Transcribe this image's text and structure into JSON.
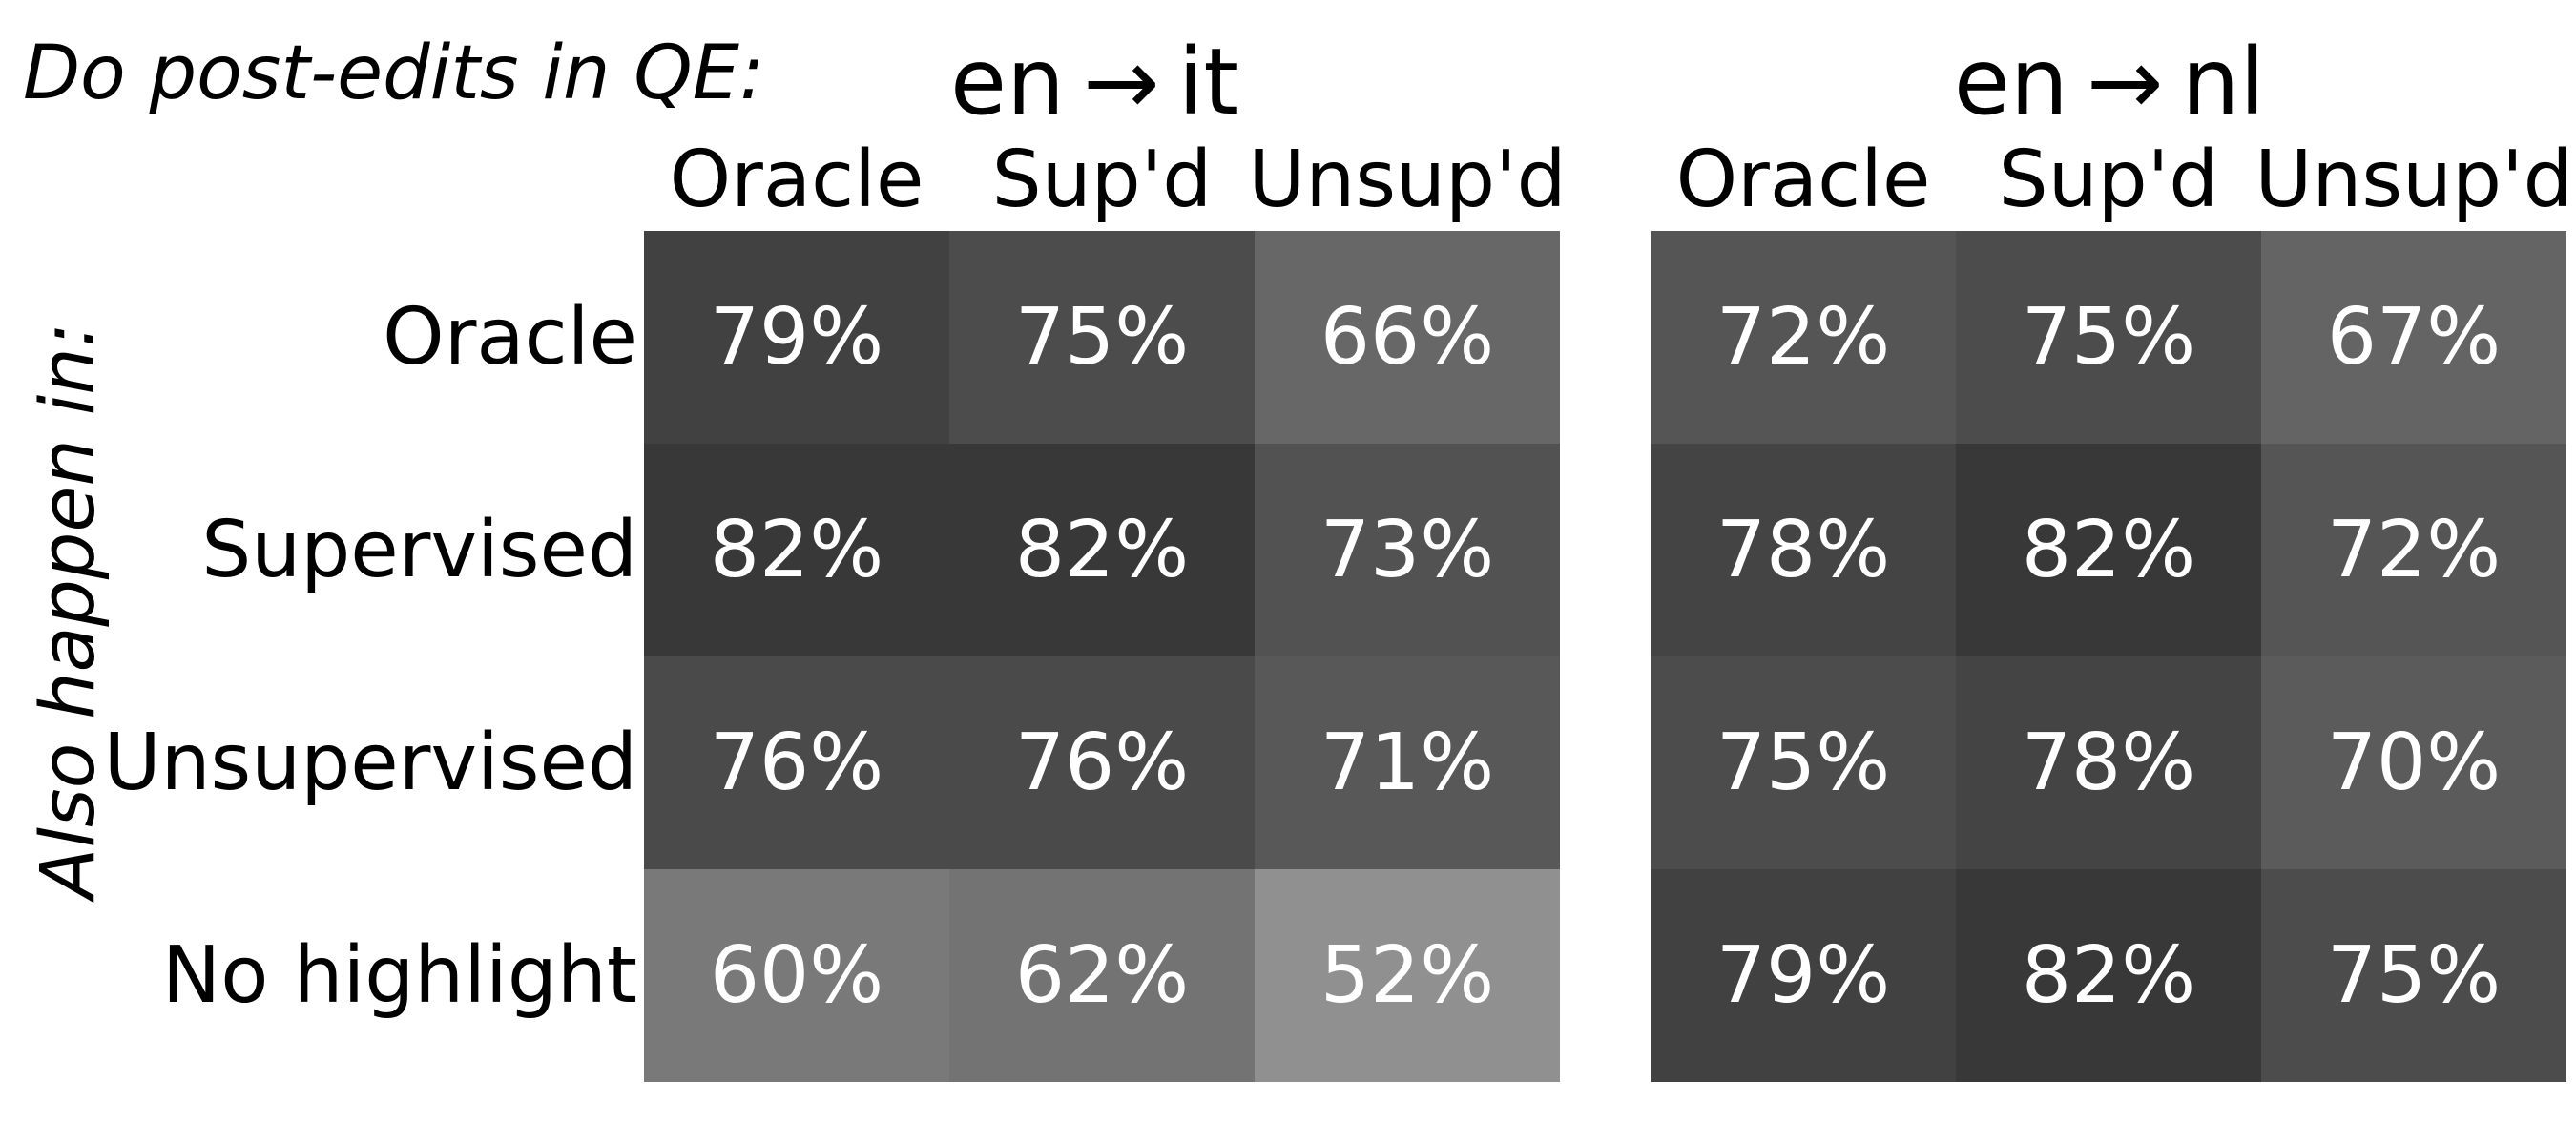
{
  "chart_data": {
    "type": "heatmap",
    "title": "Do post-edits in QE:",
    "ylabel": "Also happen in:",
    "row_labels": [
      "Oracle",
      "Supervised",
      "Unsupervised",
      "No highlight"
    ],
    "colormap": "greys",
    "panels": [
      {
        "title": "en → it",
        "columns": [
          "Oracle",
          "Sup'd",
          "Unsup'd"
        ],
        "values": [
          [
            79,
            75,
            66
          ],
          [
            82,
            82,
            73
          ],
          [
            76,
            76,
            71
          ],
          [
            60,
            62,
            52
          ]
        ],
        "labels": [
          [
            "79%",
            "75%",
            "66%"
          ],
          [
            "82%",
            "82%",
            "73%"
          ],
          [
            "76%",
            "76%",
            "71%"
          ],
          [
            "60%",
            "62%",
            "52%"
          ]
        ]
      },
      {
        "title": "en → nl",
        "columns": [
          "Oracle",
          "Sup'd",
          "Unsup'd"
        ],
        "values": [
          [
            72,
            75,
            67
          ],
          [
            78,
            82,
            72
          ],
          [
            75,
            78,
            70
          ],
          [
            79,
            82,
            75
          ]
        ],
        "labels": [
          [
            "72%",
            "75%",
            "67%"
          ],
          [
            "78%",
            "82%",
            "72%"
          ],
          [
            "75%",
            "78%",
            "70%"
          ],
          [
            "79%",
            "82%",
            "75%"
          ]
        ]
      }
    ]
  }
}
